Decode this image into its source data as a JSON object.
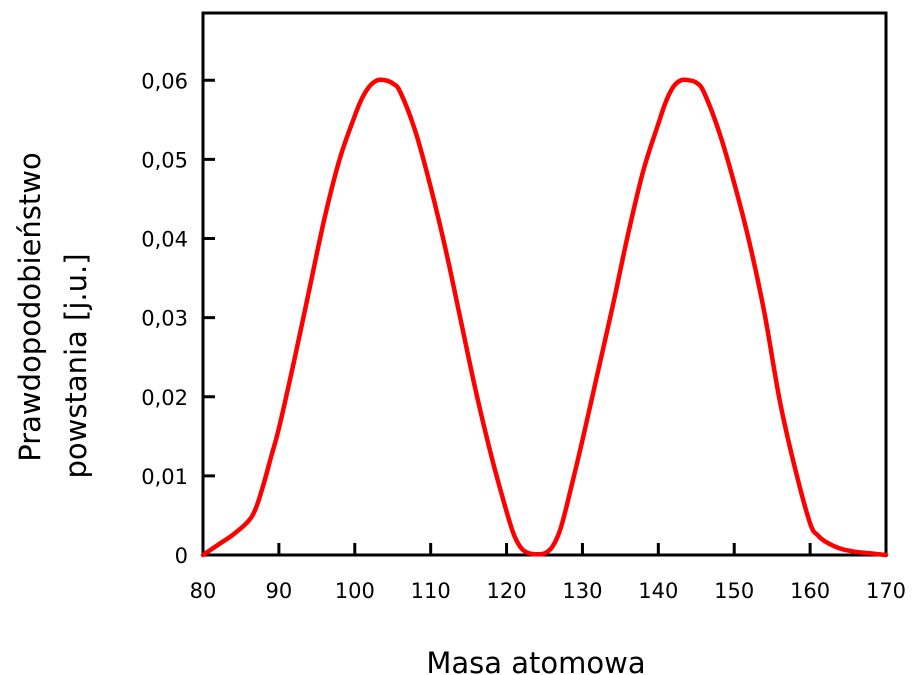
{
  "chart_data": {
    "type": "line",
    "title": "",
    "xlabel": "Masa atomowa",
    "ylabel_line1": "Prawdopodobieństwo",
    "ylabel_line2": "powstania [j.u.]",
    "xlim": [
      80,
      170
    ],
    "ylim": [
      0,
      0.0685
    ],
    "x_ticks": [
      80,
      90,
      100,
      110,
      120,
      130,
      140,
      150,
      160,
      170
    ],
    "x_tick_labels": [
      "80",
      "90",
      "100",
      "110",
      "120",
      "130",
      "140",
      "150",
      "160",
      "170"
    ],
    "y_ticks": [
      0,
      0.01,
      0.02,
      0.03,
      0.04,
      0.05,
      0.06
    ],
    "y_tick_labels": [
      "0",
      "0,01",
      "0,02",
      "0,03",
      "0,04",
      "0,05",
      "0,06"
    ],
    "grid": false,
    "series": [
      {
        "color": "#ff0000",
        "x": [
          80,
          82,
          84,
          86,
          87,
          88,
          89,
          90,
          92,
          94,
          96,
          98,
          100,
          101,
          102,
          103,
          104,
          105,
          106,
          108,
          110,
          112,
          114,
          116,
          118,
          120,
          121,
          122,
          123,
          124,
          125,
          126,
          127,
          128,
          130,
          132,
          134,
          136,
          138,
          140,
          141,
          142,
          143,
          144,
          145,
          146,
          148,
          150,
          152,
          154,
          156,
          158,
          160,
          161,
          162,
          164,
          166,
          168,
          170
        ],
        "y": [
          0,
          0.0013,
          0.0026,
          0.0043,
          0.006,
          0.009,
          0.0125,
          0.016,
          0.0245,
          0.0335,
          0.0425,
          0.05,
          0.0555,
          0.0578,
          0.0593,
          0.06,
          0.06,
          0.0596,
          0.0585,
          0.0535,
          0.0465,
          0.0385,
          0.0295,
          0.0205,
          0.0125,
          0.0055,
          0.0025,
          0.0008,
          0.0002,
          0.0001,
          0.0002,
          0.001,
          0.003,
          0.0065,
          0.0145,
          0.023,
          0.0315,
          0.0405,
          0.0485,
          0.0545,
          0.0573,
          0.0592,
          0.06,
          0.06,
          0.0597,
          0.0585,
          0.0535,
          0.047,
          0.0395,
          0.0305,
          0.0195,
          0.011,
          0.004,
          0.0025,
          0.0017,
          0.0008,
          0.0004,
          0.0002,
          0
        ]
      }
    ]
  }
}
